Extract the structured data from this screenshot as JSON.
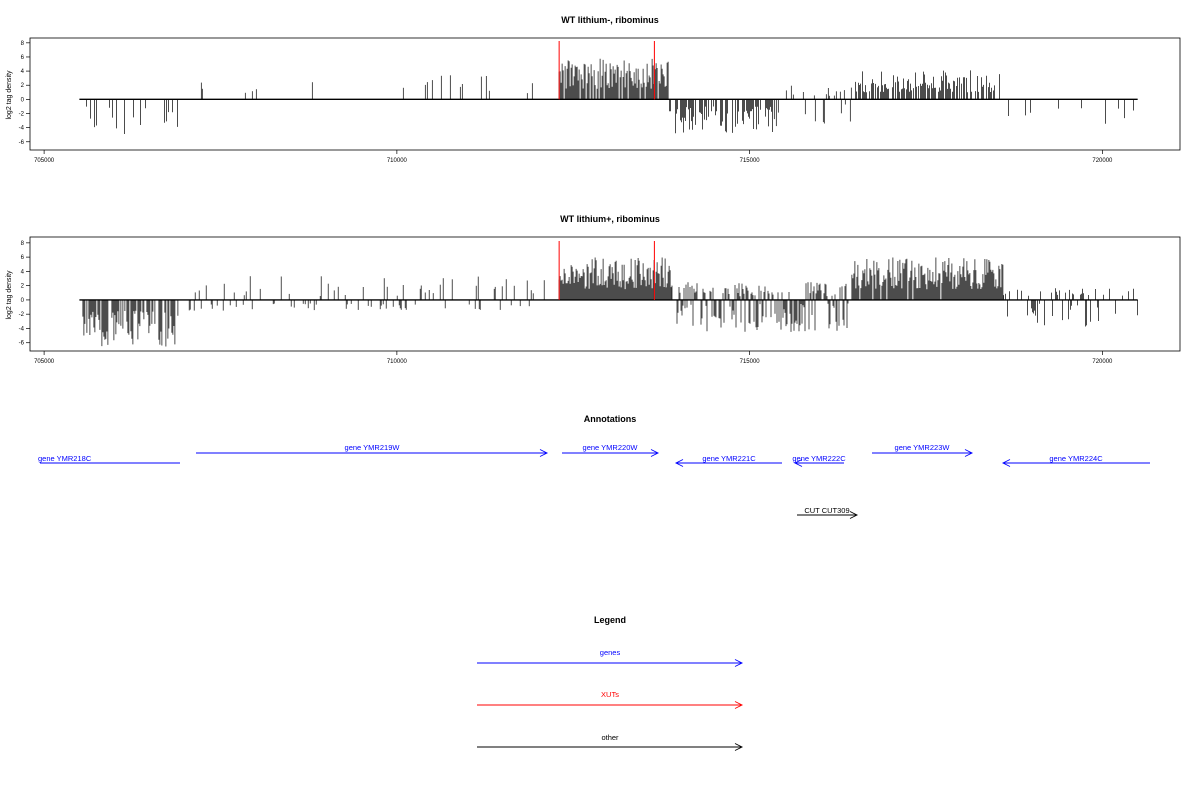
{
  "chart_data": [
    {
      "type": "bar",
      "title": "WT lithium-, ribominus",
      "ylabel": "log2 tag density",
      "xlim": [
        704800,
        721100
      ],
      "ylim": [
        -6.6,
        8.4
      ],
      "x_ticks": [
        "705000",
        "710000",
        "715000",
        "720000"
      ],
      "y_ticks": [
        "8",
        "6",
        "4",
        "2",
        "0",
        "-2",
        "-4",
        "-6"
      ],
      "baseline": {
        "from": 705500,
        "to": 720500
      },
      "markers": [
        712300,
        713650
      ],
      "segments": [
        {
          "from": 705600,
          "to": 706900,
          "min": -5.3,
          "max": -1.0,
          "sign": -1,
          "density": 0.22
        },
        {
          "from": 707100,
          "to": 712250,
          "min": 0.8,
          "max": 3.5,
          "sign": 1,
          "density": 0.05
        },
        {
          "from": 712300,
          "to": 713850,
          "min": 1.5,
          "max": 5.8,
          "sign": 1,
          "density": 0.9
        },
        {
          "from": 713850,
          "to": 715350,
          "min": -4.8,
          "max": -1.0,
          "sign": -1,
          "density": 0.6
        },
        {
          "from": 715350,
          "to": 716450,
          "min": -4.0,
          "max": 2.0,
          "sign": 0,
          "density": 0.25
        },
        {
          "from": 716500,
          "to": 718550,
          "min": 1.0,
          "max": 4.1,
          "sign": 1,
          "density": 0.7
        },
        {
          "from": 718600,
          "to": 720500,
          "min": -3.8,
          "max": -0.8,
          "sign": -1,
          "density": 0.07
        }
      ]
    },
    {
      "type": "bar",
      "title": "WT lithium+, ribominus",
      "ylabel": "log2 tag density",
      "xlim": [
        704800,
        721100
      ],
      "ylim": [
        -6.6,
        8.4
      ],
      "x_ticks": [
        "705000",
        "710000",
        "715000",
        "720000"
      ],
      "y_ticks": [
        "8",
        "6",
        "4",
        "2",
        "0",
        "-2",
        "-4",
        "-6"
      ],
      "baseline": {
        "from": 705500,
        "to": 720500
      },
      "markers": [
        712300,
        713650
      ],
      "segments": [
        {
          "from": 705550,
          "to": 706950,
          "min": -6.6,
          "max": -1.5,
          "sign": -1,
          "density": 0.75
        },
        {
          "from": 707000,
          "to": 712250,
          "min": -1.5,
          "max": 3.5,
          "sign": 0,
          "density": 0.22
        },
        {
          "from": 712300,
          "to": 713900,
          "min": 1.5,
          "max": 6.0,
          "sign": 1,
          "density": 1.0
        },
        {
          "from": 713900,
          "to": 716400,
          "min": -4.5,
          "max": 2.5,
          "sign": 0,
          "density": 0.85
        },
        {
          "from": 716450,
          "to": 718600,
          "min": 1.5,
          "max": 6.0,
          "sign": 1,
          "density": 0.95
        },
        {
          "from": 718600,
          "to": 720500,
          "min": -3.8,
          "max": 1.8,
          "sign": 0,
          "density": 0.35
        }
      ]
    }
  ],
  "annotations": {
    "title": "Annotations",
    "genes": [
      {
        "label": "gene YMR218C",
        "dir": "left"
      },
      {
        "label": "gene YMR219W",
        "dir": "right"
      },
      {
        "label": "gene YMR220W",
        "dir": "right"
      },
      {
        "label": "gene YMR221C",
        "dir": "left"
      },
      {
        "label": "gene YMR222C",
        "dir": "left"
      },
      {
        "label": "gene YMR223W",
        "dir": "right"
      },
      {
        "label": "gene YMR224C",
        "dir": "left"
      }
    ],
    "other": [
      {
        "label": "CUT CUT309",
        "dir": "right"
      }
    ]
  },
  "legend": {
    "title": "Legend",
    "items": [
      {
        "label": "genes",
        "color": "#0000ff"
      },
      {
        "label": "XUTs",
        "color": "#ff0000"
      },
      {
        "label": "other",
        "color": "#000000"
      }
    ]
  },
  "colors": {
    "gene": "#0000ff",
    "xut": "#ff0000",
    "other": "#000000",
    "signal": "#000000",
    "marker": "#ff0000"
  }
}
